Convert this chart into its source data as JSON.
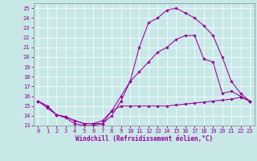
{
  "xlabel": "Windchill (Refroidissement éolien,°C)",
  "xlim": [
    -0.5,
    23.5
  ],
  "ylim": [
    13,
    25.5
  ],
  "xticks": [
    0,
    1,
    2,
    3,
    4,
    5,
    6,
    7,
    8,
    9,
    10,
    11,
    12,
    13,
    14,
    15,
    16,
    17,
    18,
    19,
    20,
    21,
    22,
    23
  ],
  "yticks": [
    13,
    14,
    15,
    16,
    17,
    18,
    19,
    20,
    21,
    22,
    23,
    24,
    25
  ],
  "bg_color": "#c8e8e8",
  "line_color": "#990099",
  "line1_y": [
    15.5,
    14.8,
    14.1,
    13.8,
    13.2,
    13.0,
    13.0,
    13.2,
    14.5,
    15.0,
    15.0,
    15.0,
    15.0,
    15.0,
    15.0,
    15.1,
    15.2,
    15.3,
    15.4,
    15.5,
    15.6,
    15.7,
    15.9,
    15.5
  ],
  "line2_y": [
    15.5,
    15.0,
    14.1,
    13.9,
    13.5,
    13.2,
    13.2,
    13.2,
    14.0,
    15.5,
    17.5,
    21.0,
    23.5,
    24.0,
    24.8,
    25.0,
    24.5,
    24.0,
    23.2,
    22.2,
    20.0,
    17.5,
    16.3,
    15.5
  ],
  "line3_y": [
    15.5,
    15.0,
    14.1,
    13.9,
    13.5,
    13.2,
    13.2,
    13.5,
    14.5,
    16.0,
    17.5,
    18.5,
    19.5,
    20.5,
    21.0,
    21.8,
    22.2,
    22.2,
    19.8,
    19.5,
    16.3,
    16.5,
    16.0,
    15.5
  ],
  "xlabel_fontsize": 5.5,
  "tick_fontsize": 5.0,
  "marker": "D",
  "markersize": 1.8,
  "linewidth": 0.75
}
